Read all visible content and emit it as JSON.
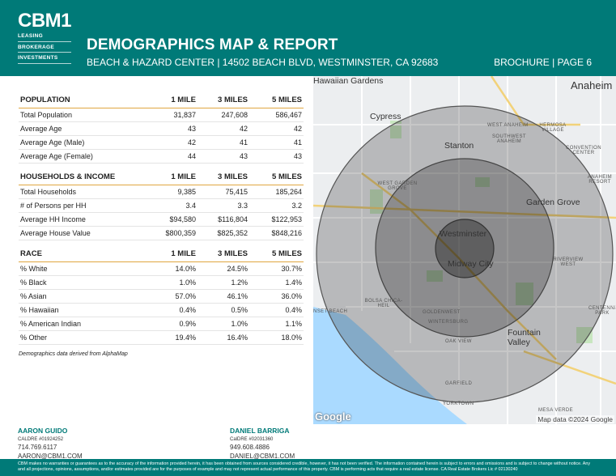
{
  "brand": {
    "logo_text": "CBM1",
    "lines": [
      "LEASING",
      "BROKERAGE",
      "INVESTMENTS"
    ]
  },
  "header": {
    "title": "DEMOGRAPHICS MAP & REPORT",
    "subtitle": "BEACH & HAZARD CENTER | 14502 BEACH BLVD, WESTMINSTER, CA 92683",
    "page_label": "BROCHURE | PAGE 6"
  },
  "columns": [
    "1 MILE",
    "3 MILES",
    "5 MILES"
  ],
  "population": {
    "heading": "POPULATION",
    "rows": [
      {
        "label": "Total Population",
        "v1": "31,837",
        "v3": "247,608",
        "v5": "586,467"
      },
      {
        "label": "Average Age",
        "v1": "43",
        "v3": "42",
        "v5": "42"
      },
      {
        "label": "Average Age (Male)",
        "v1": "42",
        "v3": "41",
        "v5": "41"
      },
      {
        "label": "Average Age (Female)",
        "v1": "44",
        "v3": "43",
        "v5": "43"
      }
    ]
  },
  "households": {
    "heading": "HOUSEHOLDS & INCOME",
    "rows": [
      {
        "label": "Total Households",
        "v1": "9,385",
        "v3": "75,415",
        "v5": "185,264"
      },
      {
        "label": "# of Persons per HH",
        "v1": "3.4",
        "v3": "3.3",
        "v5": "3.2"
      },
      {
        "label": "Average HH Income",
        "v1": "$94,580",
        "v3": "$116,804",
        "v5": "$122,953"
      },
      {
        "label": "Average House Value",
        "v1": "$800,359",
        "v3": "$825,352",
        "v5": "$848,216"
      }
    ]
  },
  "race": {
    "heading": "RACE",
    "rows": [
      {
        "label": "% White",
        "v1": "14.0%",
        "v3": "24.5%",
        "v5": "30.7%"
      },
      {
        "label": "% Black",
        "v1": "1.0%",
        "v3": "1.2%",
        "v5": "1.4%"
      },
      {
        "label": "% Asian",
        "v1": "57.0%",
        "v3": "46.1%",
        "v5": "36.0%"
      },
      {
        "label": "% Hawaiian",
        "v1": "0.4%",
        "v3": "0.5%",
        "v5": "0.4%"
      },
      {
        "label": "% American Indian",
        "v1": "0.9%",
        "v3": "1.0%",
        "v5": "1.1%"
      },
      {
        "label": "% Other",
        "v1": "19.4%",
        "v3": "16.4%",
        "v5": "18.0%"
      }
    ]
  },
  "source_note": "Demographics data derived from AlphaMap",
  "map": {
    "places": {
      "hawaiian_gardens": "Hawaiian Gardens",
      "anaheim": "Anaheim",
      "cypress": "Cypress",
      "west_anaheim": "WEST ANAHEIM",
      "hermosa_village": "HERMOSA VILLAGE",
      "southwest_anaheim": "SOUTHWEST ANAHEIM",
      "stanton": "Stanton",
      "convention_center": "CONVENTION CENTER",
      "anaheim_resort": "ANAHEIM RESORT",
      "west_garden_grove": "WEST GARDEN GROVE",
      "garden_grove": "Garden Grove",
      "westminster": "Westminster",
      "midway_city": "Midway City",
      "riverview_west": "RIVERVIEW WEST",
      "bolsa_chica": "BOLSA CHICA-HEIL",
      "sunset_beach": "NSET BEACH",
      "goldenwest": "GOLDENWEST",
      "wintersburg": "WINTERSBURG",
      "centennial_park": "CENTENNIAL PARK",
      "fountain_valley": "Fountain Valley",
      "oak_view": "OAK VIEW",
      "garfield": "GARFIELD",
      "yorktown": "YORKTOWN",
      "mesa_verde": "MESA VERDE"
    },
    "google_label": "Google",
    "credit": "Map data ©2024 Google",
    "rings_miles": [
      1,
      3,
      5
    ]
  },
  "contacts": [
    {
      "name": "AARON GUIDO",
      "license": "CALDRE #01924252",
      "phone": "714.769.6117",
      "email": "AARON@CBM1.COM"
    },
    {
      "name": "DANIEL BARRIGA",
      "license": "CalDRE #02031360",
      "phone": "949.608.4886",
      "email": "DANIEL@CBM1.COM"
    }
  ],
  "disclaimer": "CBM makes no warranties or guarantees as to the accuracy of the information provided herein, it has been obtained from sources considered credible, however, it has not been verified. The information contained herein is subject to errors and omissions and is subject to change without notice. Any and all projections, opinions, assumptions, and/or estimates provided are for the purposes of example and may not represent actual performance of this property. CBM is performing acts that require a real estate license. CA Real Estate Brokers Lic # 02130240",
  "colors": {
    "brand_teal": "#007a78",
    "accent_gold": "#e0a640"
  }
}
